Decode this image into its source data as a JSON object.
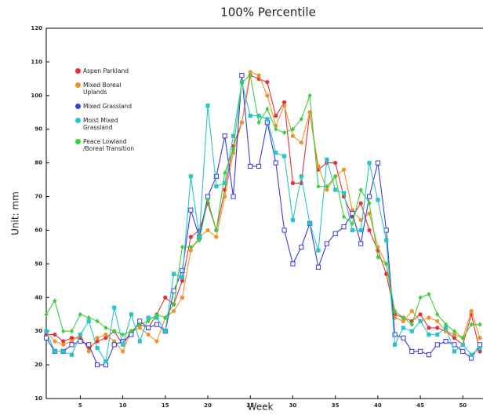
{
  "chart_data": {
    "type": "line",
    "title": "100% Percentile",
    "x_label": "Week",
    "y_label": "Unit: mm",
    "x": [
      1,
      2,
      3,
      4,
      5,
      6,
      7,
      8,
      9,
      10,
      11,
      12,
      13,
      14,
      15,
      16,
      17,
      18,
      19,
      20,
      21,
      22,
      23,
      24,
      25,
      26,
      27,
      28,
      29,
      30,
      31,
      32,
      33,
      34,
      35,
      36,
      37,
      38,
      39,
      40,
      41,
      42,
      43,
      44,
      45,
      46,
      47,
      48,
      49,
      50,
      51,
      52
    ],
    "xlim": [
      1,
      52
    ],
    "xticks": [
      5,
      10,
      15,
      20,
      25,
      30,
      35,
      40,
      45,
      50
    ],
    "ylim": [
      10,
      120
    ],
    "yticks": [
      10,
      20,
      30,
      40,
      50,
      60,
      70,
      80,
      90,
      100,
      110,
      120
    ],
    "series": [
      {
        "name": "Aspen Parkland",
        "color": "#e8303a",
        "marker": "circle",
        "values": [
          29,
          29,
          27,
          28,
          28,
          25,
          27,
          28,
          30,
          26,
          30,
          32,
          31,
          35,
          40,
          38,
          45,
          58,
          60,
          68,
          60,
          72,
          85,
          92,
          106,
          105,
          104,
          94,
          98,
          74,
          74,
          95,
          78,
          80,
          80,
          70,
          64,
          68,
          60,
          54,
          47,
          35,
          34,
          33,
          35,
          31,
          31,
          30,
          28,
          26,
          35,
          24
        ]
      },
      {
        "name": "Mixed Boreal Uplands",
        "color": "#f0922a",
        "marker": "circle",
        "values": [
          30,
          27,
          26,
          27,
          29,
          24,
          28,
          29,
          27,
          24,
          30,
          31,
          29,
          27,
          34,
          36,
          40,
          54,
          58,
          60,
          58,
          70,
          83,
          92,
          107,
          106,
          100,
          91,
          97,
          88,
          86,
          95,
          79,
          72,
          76,
          78,
          66,
          63,
          65,
          55,
          50,
          34,
          33,
          36,
          33,
          34,
          33,
          30,
          29,
          28,
          36,
          28
        ]
      },
      {
        "name": "Mixed Grassland",
        "color": "#3a3adf",
        "marker": "open-square",
        "values": [
          28,
          24,
          24,
          26,
          27,
          26,
          20,
          20,
          26,
          27,
          29,
          33,
          31,
          32,
          30,
          42,
          48,
          66,
          58,
          70,
          76,
          88,
          70,
          106,
          79,
          79,
          92,
          80,
          60,
          50,
          55,
          62,
          49,
          56,
          59,
          61,
          65,
          56,
          70,
          80,
          60,
          29,
          28,
          24,
          24,
          23,
          26,
          27,
          26,
          24,
          22,
          26
        ]
      },
      {
        "name": "Moist Mixed Grassland",
        "color": "#2ac4c8",
        "marker": "square",
        "values": [
          30,
          24,
          24,
          23,
          29,
          33,
          25,
          21,
          37,
          26,
          35,
          27,
          34,
          34,
          30,
          47,
          46,
          76,
          58,
          97,
          73,
          74,
          88,
          104,
          94,
          94,
          93,
          83,
          82,
          63,
          76,
          62,
          54,
          81,
          72,
          71,
          60,
          60,
          80,
          69,
          57,
          26,
          31,
          30,
          33,
          29,
          29,
          31,
          24,
          26,
          23,
          25
        ]
      },
      {
        "name": "Peace Lowland /Boreal Transition",
        "color": "#3ad23a",
        "marker": "diamond",
        "values": [
          35,
          39,
          30,
          30,
          35,
          34,
          33,
          31,
          30,
          29,
          30,
          32,
          33,
          35,
          34,
          38,
          55,
          55,
          57,
          69,
          60,
          77,
          84,
          104,
          106,
          92,
          96,
          90,
          89,
          90,
          93,
          100,
          73,
          73,
          76,
          64,
          62,
          72,
          68,
          52,
          50,
          36,
          34,
          32,
          40,
          41,
          35,
          32,
          30,
          28,
          32,
          32
        ]
      }
    ]
  }
}
